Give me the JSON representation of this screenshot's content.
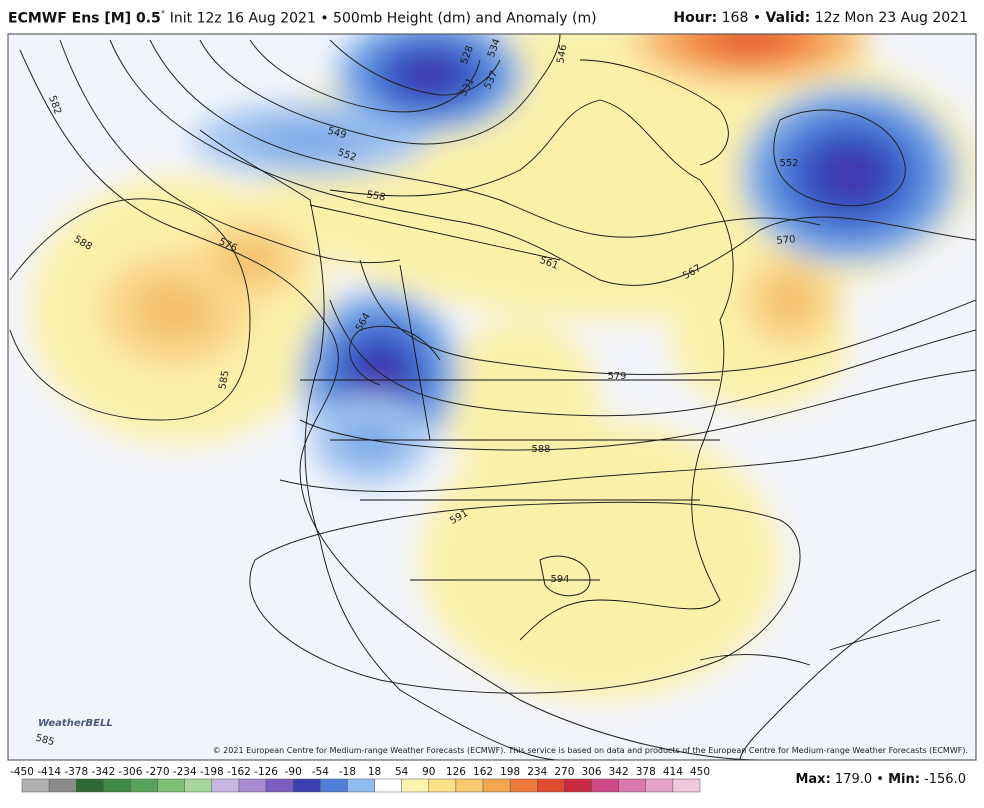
{
  "header": {
    "model": "ECMWF Ens [M] 0.5",
    "degree": "°",
    "init": "Init 12z 16 Aug 2021",
    "sep": "•",
    "product": "500mb Height (dm) and Anomaly (m)",
    "hour_label": "Hour:",
    "hour": "168",
    "sep2": "•",
    "valid_label": "Valid:",
    "valid": "12z Mon 23 Aug 2021"
  },
  "map": {
    "contour_labels": [
      "582",
      "588",
      "576",
      "585",
      "549",
      "552",
      "558",
      "528",
      "531",
      "534",
      "537",
      "546",
      "552",
      "570",
      "561",
      "564",
      "579",
      "588",
      "591",
      "594",
      "567",
      "585"
    ]
  },
  "copyright": "© 2021 European Centre for Medium-range Weather Forecasts (ECMWF). This service is based on data and products of the European Centre for Medium-range Weather Forecasts (ECMWF).",
  "logo": "WeatherBELL",
  "colorbar": {
    "labels": [
      -450,
      -414,
      -378,
      -342,
      -306,
      -270,
      -234,
      -198,
      -162,
      -126,
      -90,
      -54,
      -18,
      18,
      54,
      90,
      126,
      162,
      198,
      234,
      270,
      306,
      342,
      378,
      414,
      450
    ]
  },
  "footer": {
    "max_label": "Max:",
    "max": "179.0",
    "sep": "•",
    "min_label": "Min:",
    "min": "-156.0"
  }
}
